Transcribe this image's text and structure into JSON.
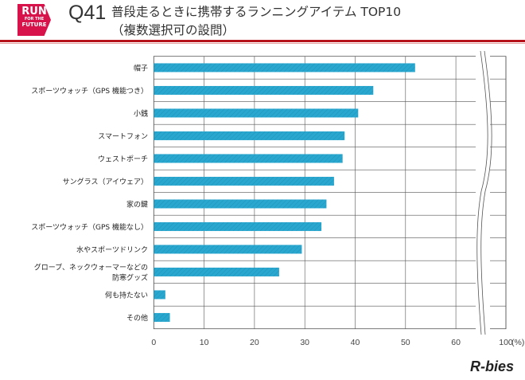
{
  "header": {
    "logo_lines": [
      "RUN",
      "FOR THE",
      "FUTURE"
    ],
    "question": "Q41",
    "title_line1": "普段走るときに携帯するランニングアイテム TOP10",
    "title_line2": "（複数選択可の設問）"
  },
  "footer": {
    "brand": "R-bies"
  },
  "chart_data": {
    "type": "bar",
    "orientation": "horizontal",
    "categories": [
      "帽子",
      "スポーツウォッチ（GPS 機能つき）",
      "小銭",
      "スマートフォン",
      "ウェストポーチ",
      "サングラス（アイウェア）",
      "家の鍵",
      "スポーツウォッチ（GPS 機能なし）",
      "水やスポーツドリンク",
      "グローブ、ネックウォーマーなどの|防寒グッズ",
      "何も持たない",
      "その他"
    ],
    "values": [
      51.9,
      43.6,
      40.6,
      37.9,
      37.5,
      35.8,
      34.3,
      33.3,
      29.4,
      24.9,
      2.3,
      3.2
    ],
    "xticks": [
      "0",
      "10",
      "20",
      "30",
      "40",
      "50",
      "60",
      "100"
    ],
    "unit": "(%)",
    "xlim": [
      0,
      100
    ],
    "axis_break": [
      60,
      100
    ],
    "grid": true,
    "bar_color": "#29a7cf"
  }
}
